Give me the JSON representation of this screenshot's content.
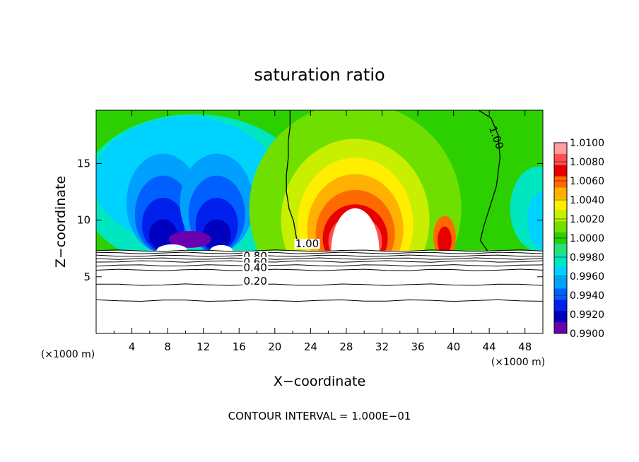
{
  "chart_data": {
    "type": "heatmap",
    "title": "saturation ratio",
    "xlabel": "X−coordinate",
    "ylabel": "Z−coordinate",
    "x_unit_left": "(×1000 m)",
    "x_unit_right": "(×1000 m)",
    "footer": "CONTOUR INTERVAL = 1.000E−01",
    "xlim": [
      0,
      50
    ],
    "ylim": [
      0,
      19.7
    ],
    "x_ticks": [
      4,
      8,
      12,
      16,
      20,
      24,
      28,
      32,
      36,
      40,
      44,
      48
    ],
    "x_tick_labels": [
      "4",
      "8",
      "12",
      "16",
      "20",
      "24",
      "28",
      "32",
      "36",
      "40",
      "44",
      "48"
    ],
    "y_ticks": [
      5,
      10,
      15
    ],
    "y_tick_labels": [
      "5",
      "10",
      "15"
    ],
    "colorbar": {
      "min": 0.99,
      "max": 1.01,
      "labels": [
        "1.0100",
        "1.0080",
        "1.0060",
        "1.0040",
        "1.0020",
        "1.0000",
        "0.9980",
        "0.9960",
        "0.9940",
        "0.9920",
        "0.9900"
      ],
      "values": [
        1.01,
        1.008,
        1.006,
        1.004,
        1.002,
        1.0,
        0.998,
        0.996,
        0.994,
        0.992,
        0.99
      ],
      "colors": [
        "#ff9fa0",
        "#ff5050",
        "#e60000",
        "#ff6a00",
        "#ffb000",
        "#ffee00",
        "#c8ef00",
        "#6fdf00",
        "#2cd000",
        "#26e080",
        "#00e6c0",
        "#00d2ff",
        "#00a0ff",
        "#0060ff",
        "#0020ee",
        "#0000c0",
        "#6a00b0"
      ]
    },
    "contour_labels": [
      "1.00",
      "1.00",
      "0.80",
      "0.60",
      "0.40",
      "0.20"
    ],
    "contour_label_values": [
      1.0,
      1.0,
      0.8,
      0.6,
      0.4,
      0.2
    ],
    "series": [
      {
        "name": "1.00",
        "x": [
          21.7,
          21.7,
          21.5,
          21.5,
          21.3,
          21.3,
          21.6,
          22.1,
          22.6
        ],
        "y": [
          19.7,
          18.2,
          17.0,
          15.5,
          14.0,
          12.5,
          11.0,
          9.9,
          7.6
        ]
      },
      {
        "name": "1.00",
        "x": [
          42.8,
          44.2,
          45.0,
          45.2,
          44.8,
          44.0,
          43.4,
          43.0,
          43.8
        ],
        "y": [
          19.7,
          19.0,
          17.5,
          15.5,
          13.0,
          11.0,
          9.5,
          8.2,
          7.3
        ]
      }
    ],
    "data_labels": [
      {
        "text": "1.00",
        "x": 44.3,
        "y": 17.4
      },
      {
        "text": "1.00",
        "x": 23.3,
        "y": 7.6
      },
      {
        "text": "0.80",
        "x": 17.5,
        "y": 6.5
      },
      {
        "text": "0.60",
        "x": 17.5,
        "y": 6.0
      },
      {
        "text": "0.40",
        "x": 17.5,
        "y": 5.5
      },
      {
        "text": "0.20",
        "x": 17.5,
        "y": 4.3
      }
    ],
    "field_summary": {
      "min": 0.99,
      "max": 1.01,
      "undefined_region": "no colour below z ≈ 7.3 (×1000 m) and inside the core centred near x ≈ 29",
      "dry_maxima_x": [
        8,
        14
      ],
      "moist_maximum_x": 29
    }
  }
}
